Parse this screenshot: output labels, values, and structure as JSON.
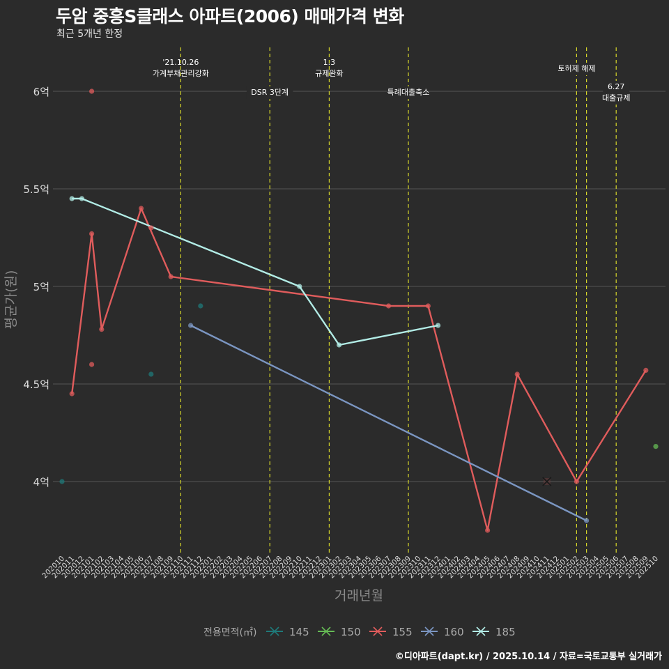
{
  "title": "두암 중흥S클래스 아파트(2006) 매매가격 변화",
  "subtitle": "최근 5개년 한정",
  "footer": "©디아파트(dapt.kr) / 2025.10.14 / 자료=국토교통부 실거래가",
  "chart_data": {
    "type": "line",
    "xlabel": "거래년월",
    "ylabel": "평균가(원)",
    "ylim": [
      3.65,
      6.2
    ],
    "yticks": [
      4,
      4.5,
      5,
      5.5,
      6
    ],
    "ytick_labels": [
      "4억",
      "4.5억",
      "5억",
      "5.5억",
      "6억"
    ],
    "categories": [
      "202010",
      "202011",
      "202012",
      "202101",
      "202102",
      "202103",
      "202104",
      "202105",
      "202106",
      "202107",
      "202108",
      "202109",
      "202110",
      "202111",
      "202112",
      "202201",
      "202202",
      "202203",
      "202204",
      "202205",
      "202206",
      "202207",
      "202208",
      "202209",
      "202210",
      "202211",
      "202212",
      "202301",
      "202302",
      "202303",
      "202304",
      "202305",
      "202306",
      "202307",
      "202308",
      "202309",
      "202310",
      "202311",
      "202312",
      "202401",
      "202402",
      "202403",
      "202404",
      "202405",
      "202406",
      "202407",
      "202408",
      "202409",
      "202410",
      "202411",
      "202412",
      "202501",
      "202502",
      "202503",
      "202504",
      "202505",
      "202506",
      "202507",
      "202508",
      "202509",
      "202510"
    ],
    "legend_title": "전용면적(㎡)",
    "legend_position": "bottom",
    "series": [
      {
        "name": "145",
        "color": "#1f7a7a",
        "line": false,
        "points": [
          [
            "202010",
            4.0
          ],
          [
            "202107",
            4.55
          ],
          [
            "202112",
            4.9
          ]
        ]
      },
      {
        "name": "150",
        "color": "#66bb55",
        "line": false,
        "points": [
          [
            "202510",
            4.18
          ]
        ]
      },
      {
        "name": "155",
        "color": "#e05c5c",
        "line": true,
        "points": [
          [
            "202011",
            4.45
          ],
          [
            "202101",
            5.27
          ],
          [
            "202102",
            4.78
          ],
          [
            "202106",
            5.4
          ],
          [
            "202109",
            5.05
          ],
          [
            "202307",
            4.9
          ],
          [
            "202311",
            4.9
          ],
          [
            "202405",
            3.75
          ],
          [
            "202408",
            4.55
          ],
          [
            "202502",
            4.0
          ],
          [
            "202509",
            4.57
          ]
        ],
        "extra_points": [
          [
            "202101",
            6.0
          ],
          [
            "202101",
            4.6
          ],
          [
            "202107",
            5.3
          ]
        ],
        "cross_points": [
          [
            "202411",
            4.0
          ]
        ]
      },
      {
        "name": "160",
        "color": "#7b96c2",
        "line": true,
        "points": [
          [
            "202111",
            4.8
          ],
          [
            "202503",
            3.8
          ]
        ]
      },
      {
        "name": "185",
        "color": "#b2ece6",
        "line": true,
        "points": [
          [
            "202011",
            5.45
          ],
          [
            "202012",
            5.45
          ],
          [
            "202210",
            5.0
          ],
          [
            "202302",
            4.7
          ],
          [
            "202312",
            4.8
          ]
        ]
      }
    ],
    "annotations": [
      {
        "x": "202110",
        "lines": [
          "'21.10.26",
          "가계부채관리강화"
        ],
        "row": 0
      },
      {
        "x": "202207",
        "lines": [
          "DSR 3단계"
        ],
        "row": 2
      },
      {
        "x": "202301",
        "lines": [
          "1.3",
          "규제완화"
        ],
        "row": 0
      },
      {
        "x": "202309",
        "lines": [
          "특례대출축소"
        ],
        "row": 2
      },
      {
        "x": "202502",
        "lines": [
          "토허제 해제"
        ],
        "row": 1
      },
      {
        "x": "202503",
        "lines": [],
        "row": 1
      },
      {
        "x": "202506",
        "lines": [
          "6.27",
          "대출규제"
        ],
        "row": 3
      }
    ]
  }
}
